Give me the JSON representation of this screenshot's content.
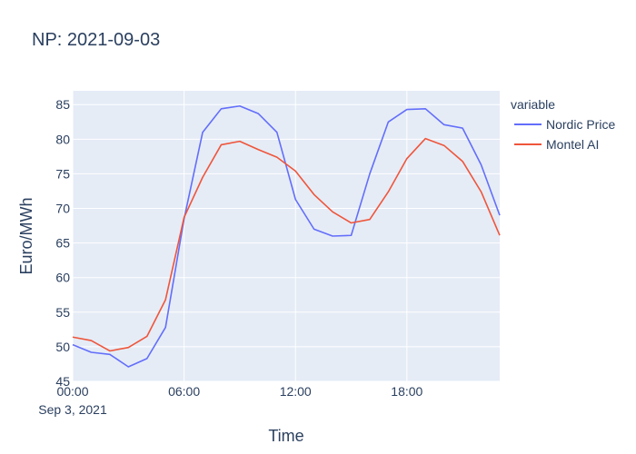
{
  "chart_data": {
    "type": "line",
    "title": "NP: 2021-09-03",
    "xlabel": "Time",
    "ylabel": "Euro/MWh",
    "x_hours": [
      0,
      1,
      2,
      3,
      4,
      5,
      6,
      7,
      8,
      9,
      10,
      11,
      12,
      13,
      14,
      15,
      16,
      17,
      18,
      19,
      20,
      21,
      22,
      23
    ],
    "x_tick_values": [
      0,
      6,
      12,
      18
    ],
    "x_tick_labels": [
      "00:00",
      "06:00",
      "12:00",
      "18:00"
    ],
    "x_date_label": "Sep 3, 2021",
    "xlim": [
      0,
      23
    ],
    "ylim": [
      45,
      87
    ],
    "y_ticks": [
      45,
      50,
      55,
      60,
      65,
      70,
      75,
      80,
      85
    ],
    "grid": true,
    "legend": {
      "title": "variable",
      "position": "right"
    },
    "series": [
      {
        "name": "Nordic Price",
        "color": "#636efa",
        "values": [
          50.3,
          49.2,
          48.9,
          47.1,
          48.3,
          52.8,
          68.5,
          81.0,
          84.4,
          84.8,
          83.7,
          81.0,
          71.3,
          67.0,
          66.0,
          66.1,
          75.0,
          82.5,
          84.3,
          84.4,
          82.1,
          81.6,
          76.3,
          69.0
        ]
      },
      {
        "name": "Montel AI",
        "color": "#ef553b",
        "values": [
          51.4,
          50.9,
          49.4,
          49.9,
          51.5,
          56.8,
          68.7,
          74.5,
          79.2,
          79.7,
          78.5,
          77.4,
          75.4,
          72.0,
          69.5,
          67.9,
          68.4,
          72.4,
          77.2,
          80.1,
          79.1,
          76.8,
          72.4,
          66.1
        ]
      }
    ]
  }
}
